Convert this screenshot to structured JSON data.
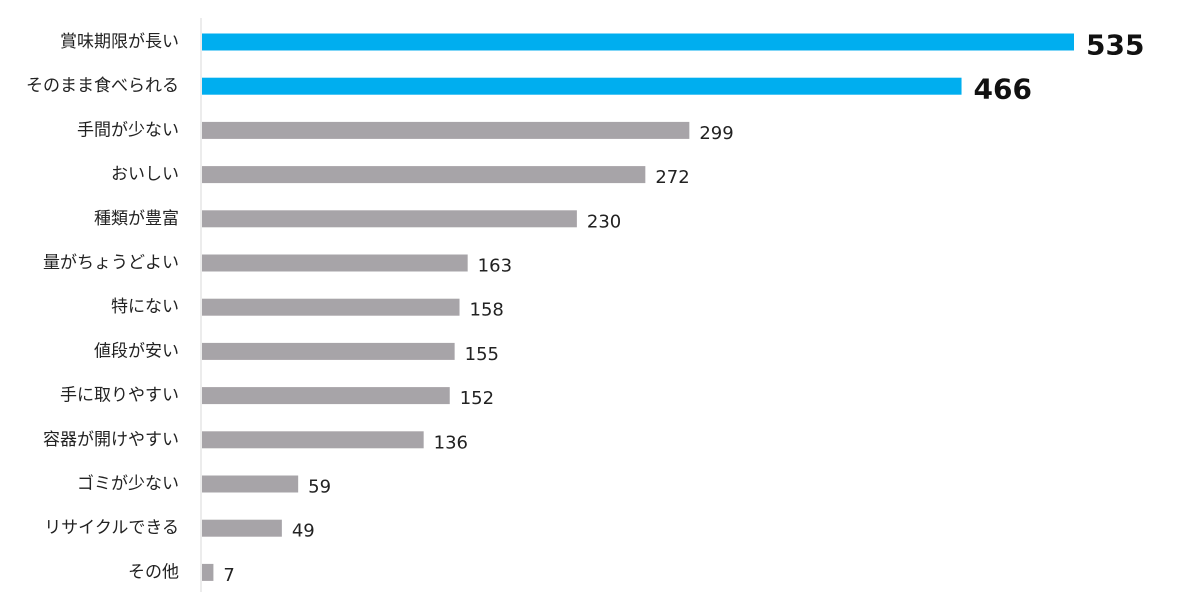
{
  "chart_data": {
    "type": "bar",
    "orientation": "horizontal",
    "categories": [
      "賞味期限が長い",
      "そのまま食べられる",
      "手間が少ない",
      "おいしい",
      "種類が豊富",
      "量がちょうどよい",
      "特にない",
      "値段が安い",
      "手に取りやすい",
      "容器が開けやすい",
      "ゴミが少ない",
      "リサイクルできる",
      "その他"
    ],
    "values": [
      535,
      466,
      299,
      272,
      230,
      163,
      158,
      155,
      152,
      136,
      59,
      49,
      7
    ],
    "highlight_count": 2,
    "xlim": [
      0,
      535
    ],
    "title": "",
    "xlabel": "",
    "ylabel": "",
    "grid": false,
    "legend": "none"
  },
  "colors": {
    "highlight": "#00AEEF",
    "default": "#A7A4A8",
    "axis": "#D9D9D9",
    "text": "#222222"
  }
}
